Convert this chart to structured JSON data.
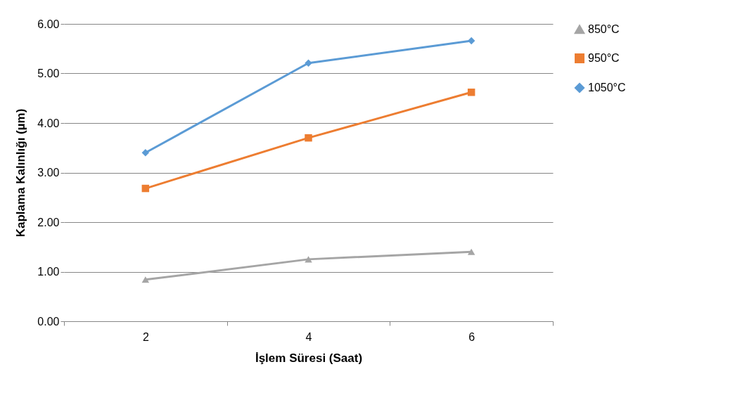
{
  "chart_data": {
    "type": "line",
    "xlabel": "İşlem Süresi (Saat)",
    "ylabel": "Kaplama Kalınlığı (µm)",
    "categories": [
      "2",
      "4",
      "6"
    ],
    "series": [
      {
        "name": "850°C",
        "color": "#a5a5a5",
        "marker": "triangle",
        "values": [
          0.84,
          1.25,
          1.4
        ]
      },
      {
        "name": "950°C",
        "color": "#ed7d31",
        "marker": "square",
        "values": [
          2.68,
          3.7,
          4.62
        ]
      },
      {
        "name": "1050°C",
        "color": "#5b9bd5",
        "marker": "diamond",
        "values": [
          3.4,
          5.21,
          5.66
        ]
      }
    ],
    "ylim": [
      0,
      6
    ],
    "yticks": [
      {
        "value": 0,
        "label": "0.00"
      },
      {
        "value": 1,
        "label": "1.00"
      },
      {
        "value": 2,
        "label": "2.00"
      },
      {
        "value": 3,
        "label": "3.00"
      },
      {
        "value": 4,
        "label": "4.00"
      },
      {
        "value": 5,
        "label": "5.00"
      },
      {
        "value": 6,
        "label": "6.00"
      }
    ],
    "grid": "y",
    "legend": "right",
    "line_style": "solid"
  }
}
